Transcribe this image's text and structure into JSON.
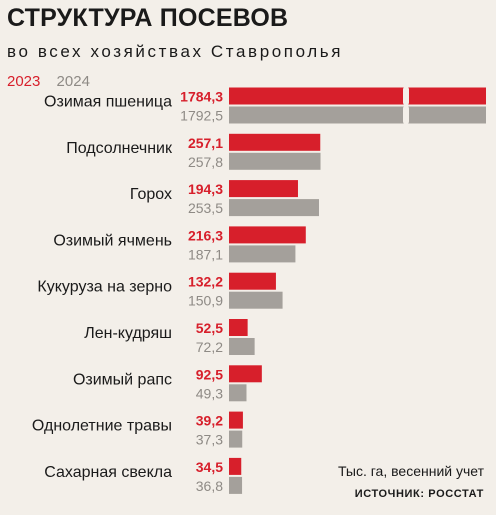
{
  "title": "СТРУКТУРА ПОСЕВОВ",
  "subtitle": "во всех хозяйствах Ставрополья",
  "unit_note": "Тыс. га, весенний учет",
  "source": "ИСТОЧНИК: РОССТАТ",
  "colors": {
    "y2023": "#d71f2b",
    "y2024": "#a4a09b",
    "label2023": "#d71f2b",
    "label2024": "#8e8a85"
  },
  "chart_data": {
    "type": "bar",
    "orientation": "horizontal",
    "categories": [
      "Озимая пшеница",
      "Подсолнечник",
      "Горох",
      "Озимый ячмень",
      "Кукуруза на зерно",
      "Лен-кудряш",
      "Озимый рапс",
      "Однолетние травы",
      "Сахарная свекла"
    ],
    "series": [
      {
        "name": "2023",
        "values": [
          1784.3,
          257.1,
          194.3,
          216.3,
          132.2,
          52.5,
          92.5,
          39.2,
          34.5
        ],
        "labels": [
          "1784,3",
          "257,1",
          "194,3",
          "216,3",
          "132,2",
          "52,5",
          "92,5",
          "39,2",
          "34,5"
        ]
      },
      {
        "name": "2024",
        "values": [
          1792.5,
          257.8,
          253.5,
          187.1,
          150.9,
          72.2,
          49.3,
          37.3,
          36.8
        ],
        "labels": [
          "1792,5",
          "257,8",
          "253,5",
          "187,1",
          "150,9",
          "72,2",
          "49,3",
          "37,3",
          "36,8"
        ]
      }
    ],
    "axis_break": "first category bars truncated"
  }
}
